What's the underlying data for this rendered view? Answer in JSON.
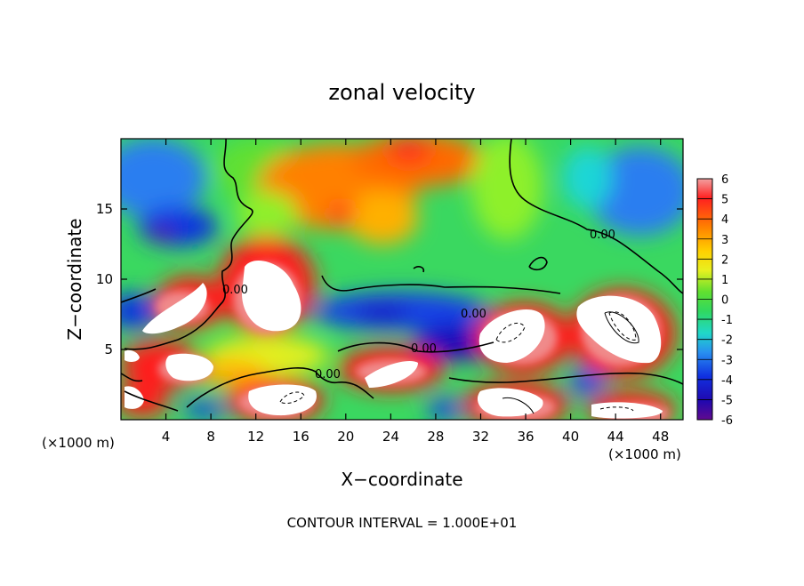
{
  "chart_data": {
    "type": "heatmap",
    "title": "zonal velocity",
    "xlabel": "X−coordinate",
    "ylabel": "Z−coordinate",
    "x_unit_left": "(×1000 m)",
    "x_unit_right": "(×1000 m)",
    "xlim": [
      0,
      50
    ],
    "ylim": [
      0,
      20
    ],
    "x_ticks": [
      4,
      8,
      12,
      16,
      20,
      24,
      28,
      32,
      36,
      40,
      44,
      48
    ],
    "y_ticks": [
      5,
      10,
      15
    ],
    "colorbar": {
      "ticks": [
        6,
        5,
        4,
        3,
        2,
        1,
        0,
        -1,
        -2,
        -3,
        -4,
        -5,
        -6
      ],
      "range": [
        -6,
        6
      ],
      "colors": [
        "#5b0a91",
        "#1c06b9",
        "#1240e6",
        "#2a9cf2",
        "#1fd6d6",
        "#2ee08c",
        "#3ad83a",
        "#8ef02a",
        "#e6f01a",
        "#ffb000",
        "#ff6a00",
        "#ff1a1a",
        "#f08a8a"
      ]
    },
    "contour_label": "0.00",
    "footer": "CONTOUR INTERVAL = 1.000E+01"
  }
}
